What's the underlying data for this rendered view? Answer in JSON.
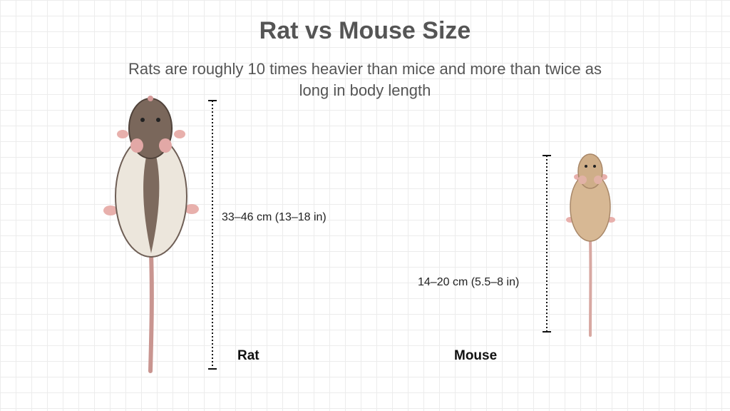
{
  "header": {
    "title": "Rat vs Mouse Size",
    "subtitle": "Rats are roughly 10 times heavier than mice and more than twice as long in body length"
  },
  "animals": [
    {
      "name": "Rat",
      "size": "33–46 cm (13–18 in)"
    },
    {
      "name": "Mouse",
      "size": "14–20 cm (5.5–8 in)"
    }
  ]
}
